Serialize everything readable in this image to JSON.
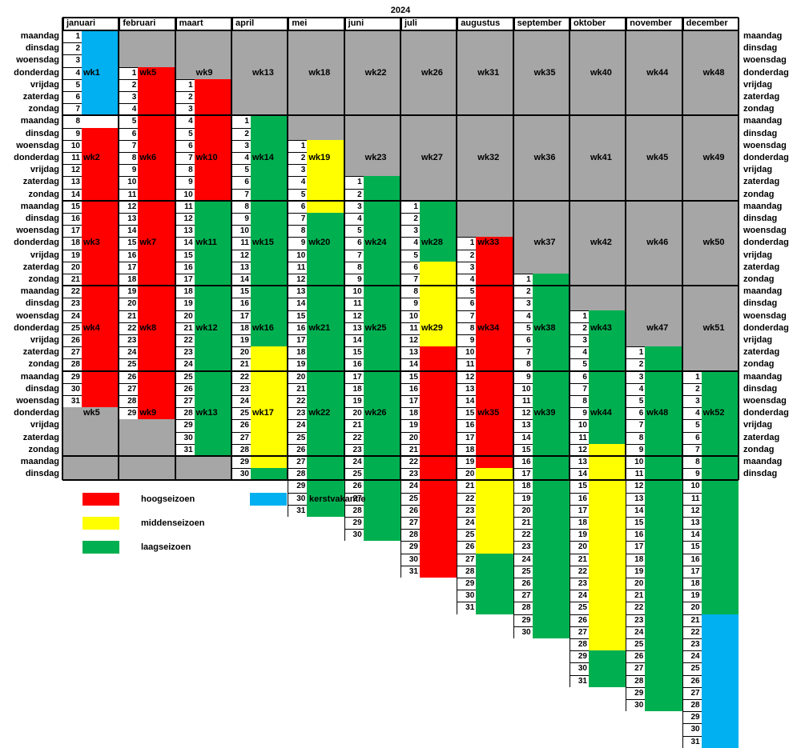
{
  "year": "2024",
  "months": [
    "januari",
    "februari",
    "maart",
    "april",
    "mei",
    "juni",
    "juli",
    "augustus",
    "september",
    "oktober",
    "november",
    "december"
  ],
  "weekdays": [
    "maandag",
    "dinsdag",
    "woensdag",
    "donderdag",
    "vrijdag",
    "zaterdag",
    "zondag"
  ],
  "colors": {
    "hoog": "#ff0000",
    "midden": "#ffff00",
    "laag": "#00b050",
    "kerst": "#00b0f0",
    "gray": "#a6a6a6"
  },
  "legend": [
    {
      "key": "hoog",
      "label": "hoogseizoen"
    },
    {
      "key": "kerst",
      "label": "kerstvakantie"
    },
    {
      "key": "midden",
      "label": "middenseizoen"
    },
    {
      "key": "laag",
      "label": "laagseizoen"
    }
  ],
  "calendar": [
    {
      "first_row": 0,
      "days": 31,
      "seasons": [
        [
          "kerst",
          1,
          7
        ],
        [
          "hoog",
          9,
          31
        ]
      ],
      "week_labels": [
        [
          "wk1",
          3
        ],
        [
          "wk2",
          10
        ],
        [
          "wk3",
          17
        ],
        [
          "wk4",
          24
        ],
        [
          "wk5",
          31
        ]
      ]
    },
    {
      "first_row": 3,
      "days": 29,
      "seasons": [
        [
          "hoog",
          1,
          29
        ]
      ],
      "week_labels": [
        [
          "wk5",
          3
        ],
        [
          "wk6",
          10
        ],
        [
          "wk7",
          17
        ],
        [
          "wk8",
          24
        ],
        [
          "wk9",
          31
        ]
      ]
    },
    {
      "first_row": 4,
      "days": 31,
      "seasons": [
        [
          "hoog",
          1,
          10
        ],
        [
          "laag",
          11,
          31
        ]
      ],
      "week_labels": [
        [
          "wk9",
          3
        ],
        [
          "wk10",
          10
        ],
        [
          "wk11",
          17
        ],
        [
          "wk12",
          24
        ],
        [
          "wk13",
          31
        ]
      ]
    },
    {
      "first_row": 7,
      "days": 30,
      "seasons": [
        [
          "laag",
          1,
          19
        ],
        [
          "midden",
          20,
          29
        ],
        [
          "laag",
          30,
          30
        ]
      ],
      "week_labels": [
        [
          "wk13",
          3
        ],
        [
          "wk14",
          10
        ],
        [
          "wk15",
          17
        ],
        [
          "wk16",
          24
        ],
        [
          "wk17",
          31
        ]
      ]
    },
    {
      "first_row": 9,
      "days": 31,
      "seasons": [
        [
          "midden",
          1,
          6
        ],
        [
          "laag",
          7,
          31
        ]
      ],
      "week_labels": [
        [
          "wk18",
          3
        ],
        [
          "wk19",
          10
        ],
        [
          "wk20",
          17
        ],
        [
          "wk21",
          24
        ],
        [
          "wk22",
          31
        ]
      ]
    },
    {
      "first_row": 12,
      "days": 30,
      "seasons": [
        [
          "laag",
          1,
          30
        ]
      ],
      "week_labels": [
        [
          "wk22",
          3
        ],
        [
          "wk23",
          10
        ],
        [
          "wk24",
          17
        ],
        [
          "wk25",
          24
        ],
        [
          "wk26",
          31
        ]
      ]
    },
    {
      "first_row": 14,
      "days": 31,
      "seasons": [
        [
          "laag",
          1,
          5
        ],
        [
          "midden",
          6,
          12
        ],
        [
          "hoog",
          13,
          31
        ]
      ],
      "week_labels": [
        [
          "wk26",
          3
        ],
        [
          "wk27",
          10
        ],
        [
          "wk28",
          17
        ],
        [
          "wk29",
          24
        ]
      ]
    },
    {
      "first_row": 17,
      "days": 31,
      "seasons": [
        [
          "hoog",
          1,
          19
        ],
        [
          "midden",
          20,
          26
        ],
        [
          "laag",
          27,
          31
        ]
      ],
      "week_labels": [
        [
          "wk31",
          3
        ],
        [
          "wk32",
          10
        ],
        [
          "wk33",
          17
        ],
        [
          "wk34",
          24
        ],
        [
          "wk35",
          31
        ]
      ]
    },
    {
      "first_row": 20,
      "days": 30,
      "seasons": [
        [
          "laag",
          1,
          30
        ]
      ],
      "week_labels": [
        [
          "wk35",
          3
        ],
        [
          "wk36",
          10
        ],
        [
          "wk37",
          17
        ],
        [
          "wk38",
          24
        ],
        [
          "wk39",
          31
        ]
      ]
    },
    {
      "first_row": 23,
      "days": 31,
      "seasons": [
        [
          "laag",
          1,
          11
        ],
        [
          "midden",
          12,
          28
        ],
        [
          "laag",
          29,
          31
        ]
      ],
      "week_labels": [
        [
          "wk40",
          3
        ],
        [
          "wk41",
          10
        ],
        [
          "wk42",
          17
        ],
        [
          "wk43",
          24
        ],
        [
          "wk44",
          31
        ]
      ]
    },
    {
      "first_row": 26,
      "days": 30,
      "seasons": [
        [
          "laag",
          1,
          30
        ]
      ],
      "week_labels": [
        [
          "wk44",
          3
        ],
        [
          "wk45",
          10
        ],
        [
          "wk46",
          17
        ],
        [
          "wk47",
          24
        ],
        [
          "wk48",
          31
        ]
      ]
    },
    {
      "first_row": 28,
      "days": 31,
      "seasons": [
        [
          "laag",
          1,
          20
        ],
        [
          "kerst",
          21,
          31
        ]
      ],
      "week_labels": [
        [
          "wk48",
          3
        ],
        [
          "wk49",
          10
        ],
        [
          "wk50",
          17
        ],
        [
          "wk51",
          24
        ],
        [
          "wk52",
          31
        ]
      ]
    }
  ]
}
